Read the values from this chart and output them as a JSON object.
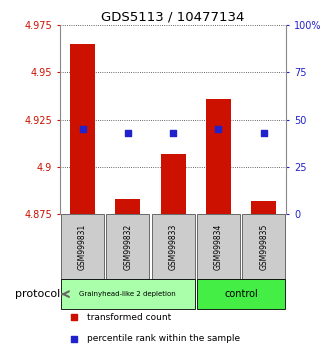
{
  "title": "GDS5113 / 10477134",
  "samples": [
    "GSM999831",
    "GSM999832",
    "GSM999833",
    "GSM999834",
    "GSM999835"
  ],
  "bar_values": [
    4.965,
    4.883,
    4.907,
    4.936,
    4.882
  ],
  "bar_bottom": 4.875,
  "blue_pct_values": [
    45,
    43,
    43,
    45,
    43
  ],
  "yleft_min": 4.875,
  "yleft_max": 4.975,
  "yright_min": 0,
  "yright_max": 100,
  "yticks_left": [
    4.875,
    4.9,
    4.925,
    4.95,
    4.975
  ],
  "yticks_right": [
    0,
    25,
    50,
    75,
    100
  ],
  "ytick_labels_right": [
    "0",
    "25",
    "50",
    "75",
    "100%"
  ],
  "bar_color": "#cc1100",
  "blue_color": "#2222cc",
  "group1_label": "Grainyhead-like 2 depletion",
  "group2_label": "control",
  "group1_color": "#aaffaa",
  "group2_color": "#44ee44",
  "group1_indices": [
    0,
    1,
    2
  ],
  "group2_indices": [
    3,
    4
  ],
  "protocol_label": "protocol",
  "legend_red": "transformed count",
  "legend_blue": "percentile rank within the sample",
  "bar_width": 0.55,
  "grid_color": "#000000",
  "bg_color": "#ffffff",
  "plot_bg": "#ffffff",
  "tick_color_left": "#cc1100",
  "tick_color_right": "#2222cc",
  "sample_box_color": "#cccccc",
  "sample_box_edge": "#555555"
}
